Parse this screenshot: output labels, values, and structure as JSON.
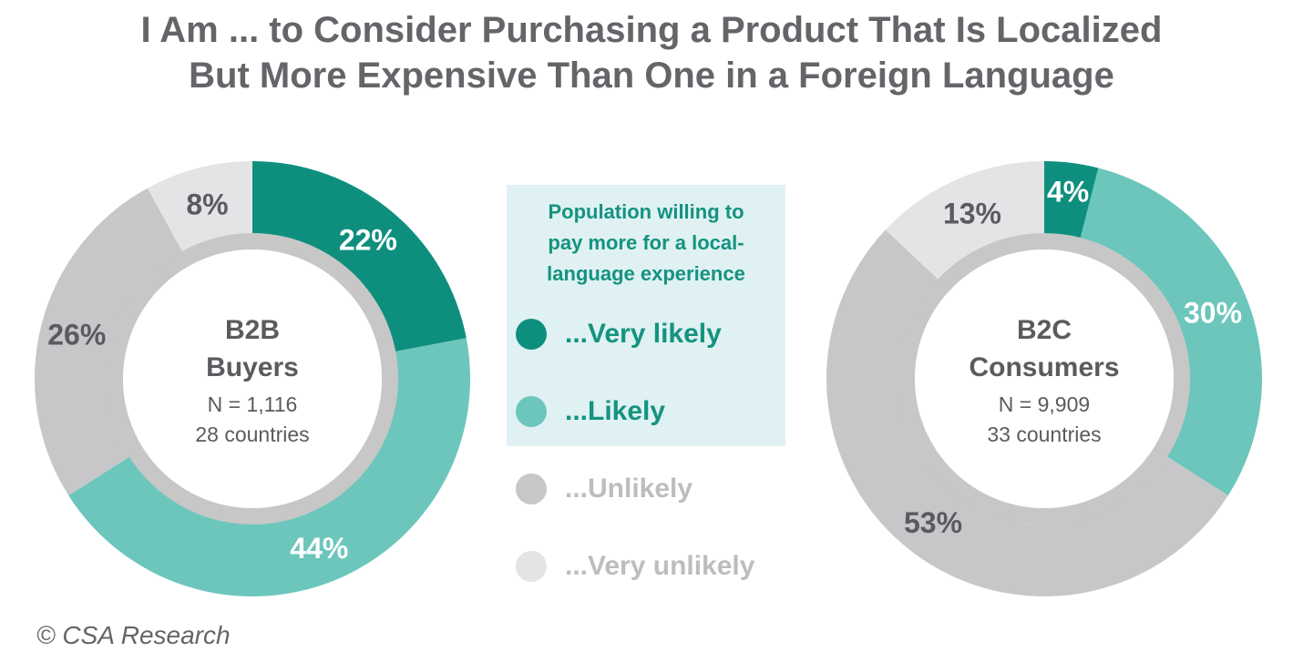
{
  "chart": {
    "title_line1": "I Am ... to Consider Purchasing a Product That Is Localized",
    "title_line2": "But More Expensive Than One in a Foreign Language"
  },
  "legend": {
    "heading_lines": [
      "Population willing to",
      "pay more for a local-",
      "language experience"
    ],
    "items": [
      {
        "label": "...Very likely",
        "color": "#0e8f7e",
        "text_color": "#14937f"
      },
      {
        "label": "...Likely",
        "color": "#6cc6bc",
        "text_color": "#14937f"
      },
      {
        "label": "...Unlikely",
        "color": "#c7c7c9",
        "text_color": "#bdbdbf"
      },
      {
        "label": "...Very unlikely",
        "color": "#e4e4e6",
        "text_color": "#bdbdbf"
      }
    ]
  },
  "chart_data": [
    {
      "type": "pie",
      "center_title_lines": [
        "B2B",
        "Buyers"
      ],
      "center_sub_lines": [
        "N = 1,116",
        "28 countries"
      ],
      "categories": [
        "...Very likely",
        "...Likely",
        "...Unlikely",
        "...Very unlikely"
      ],
      "values": [
        22,
        44,
        26,
        8
      ],
      "labels": [
        "22%",
        "44%",
        "26%",
        "8%"
      ],
      "label_colors": [
        "#ffffff",
        "#ffffff",
        "#5a5b5e",
        "#5a5b5e"
      ]
    },
    {
      "type": "pie",
      "center_title_lines": [
        "B2C",
        "Consumers"
      ],
      "center_sub_lines": [
        "N = 9,909",
        "33 countries"
      ],
      "categories": [
        "...Very likely",
        "...Likely",
        "...Unlikely",
        "...Very unlikely"
      ],
      "values": [
        4,
        30,
        53,
        13
      ],
      "labels": [
        "4%",
        "30%",
        "53%",
        "13%"
      ],
      "label_colors": [
        "#ffffff",
        "#ffffff",
        "#5a5b5e",
        "#5a5b5e"
      ]
    }
  ],
  "footer": {
    "credit": "© CSA Research"
  }
}
